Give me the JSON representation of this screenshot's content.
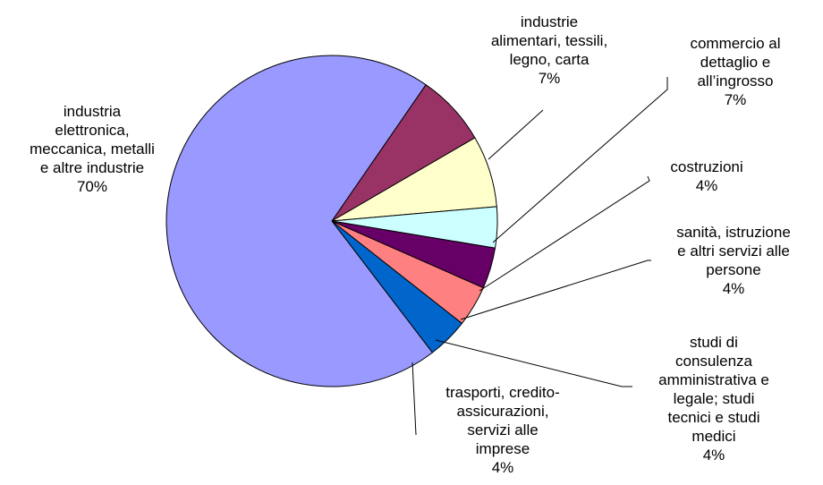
{
  "chart_data": {
    "type": "pie",
    "title": "",
    "legend": "none",
    "slices": [
      {
        "label_lines": [
          "industrie",
          "alimentari, tessili,",
          "legno, carta"
        ],
        "percent_label": "7%",
        "value": 7,
        "color": "#993366"
      },
      {
        "label_lines": [
          "commercio al",
          "dettaglio e",
          "all’ingrosso"
        ],
        "percent_label": "7%",
        "value": 7,
        "color": "#FFFFCC"
      },
      {
        "label_lines": [
          "costruzioni"
        ],
        "percent_label": "4%",
        "value": 4,
        "color": "#CCFFFF"
      },
      {
        "label_lines": [
          "sanità, istruzione",
          "e altri servizi alle",
          "persone"
        ],
        "percent_label": "4%",
        "value": 4,
        "color": "#660066"
      },
      {
        "label_lines": [
          "studi di",
          "consulenza",
          "amministrativa e",
          "legale; studi",
          "tecnici e studi",
          "medici"
        ],
        "percent_label": "4%",
        "value": 4,
        "color": "#FF8080"
      },
      {
        "label_lines": [
          "trasporti, credito-",
          "assicurazioni,",
          "servizi alle",
          "imprese"
        ],
        "percent_label": "4%",
        "value": 4,
        "color": "#0066CC"
      },
      {
        "label_lines": [
          "industria",
          "elettronica,",
          "meccanica, metalli",
          "e altre industrie"
        ],
        "percent_label": "70%",
        "value": 70,
        "color": "#9999FF"
      }
    ]
  }
}
